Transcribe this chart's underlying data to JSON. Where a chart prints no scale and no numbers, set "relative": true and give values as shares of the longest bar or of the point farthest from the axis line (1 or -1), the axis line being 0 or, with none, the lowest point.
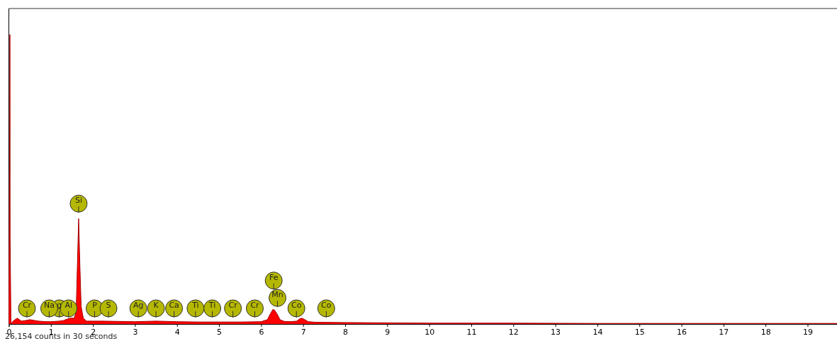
{
  "chart_data": {
    "type": "area",
    "relative": true,
    "xlim": [
      0,
      19.7
    ],
    "xticks": [
      0,
      1,
      2,
      3,
      4,
      5,
      6,
      7,
      8,
      9,
      10,
      11,
      12,
      13,
      14,
      15,
      16,
      17,
      18,
      19
    ],
    "grid": false,
    "series": [
      {
        "color": "#ff0000",
        "x": [
          0,
          0.015,
          0.02,
          0.025,
          0.03,
          0.05,
          0.1,
          0.2,
          0.3,
          0.4,
          0.5,
          0.7,
          0.9,
          1.0,
          1.2,
          1.3,
          1.45,
          1.55,
          1.6,
          1.63,
          1.66,
          1.69,
          1.72,
          1.77,
          1.85,
          2.0,
          2.2,
          2.6,
          3.0,
          3.5,
          4.0,
          4.5,
          5.0,
          5.5,
          6.0,
          6.15,
          6.22,
          6.28,
          6.32,
          6.38,
          6.45,
          6.55,
          6.7,
          6.85,
          6.92,
          6.97,
          7.03,
          7.12,
          7.3,
          8.0,
          9.0,
          10.0,
          12.0,
          14.0,
          16.0,
          18.0,
          19.7
        ],
        "values": [
          0,
          0.52,
          0.52,
          1.0,
          0.3,
          0.0,
          0.01,
          0.02,
          0.01,
          0.012,
          0.015,
          0.01,
          0.008,
          0.008,
          0.01,
          0.012,
          0.02,
          0.02,
          0.04,
          0.2,
          0.364,
          0.2,
          0.06,
          0.02,
          0.01,
          0.01,
          0.01,
          0.009,
          0.008,
          0.01,
          0.008,
          0.007,
          0.007,
          0.007,
          0.008,
          0.015,
          0.035,
          0.05,
          0.048,
          0.035,
          0.015,
          0.009,
          0.008,
          0.01,
          0.018,
          0.02,
          0.016,
          0.008,
          0.006,
          0.005,
          0.004,
          0.003,
          0.003,
          0.002,
          0.002,
          0.002,
          0.002
        ]
      }
    ],
    "annotations": [
      {
        "text": "Cr",
        "x": 0.43,
        "y": 0.054
      },
      {
        "text": "g",
        "x": 1.2,
        "y": 0.054
      },
      {
        "text": "Na",
        "x": 0.96,
        "y": 0.054
      },
      {
        "text": "Al",
        "x": 1.42,
        "y": 0.054
      },
      {
        "text": "P",
        "x": 2.04,
        "y": 0.054
      },
      {
        "text": "S",
        "x": 2.37,
        "y": 0.054
      },
      {
        "text": "Ag",
        "x": 3.08,
        "y": 0.054
      },
      {
        "text": "K",
        "x": 3.5,
        "y": 0.054
      },
      {
        "text": "Ca",
        "x": 3.93,
        "y": 0.054
      },
      {
        "text": "Ti",
        "x": 4.44,
        "y": 0.054
      },
      {
        "text": "Ti",
        "x": 4.84,
        "y": 0.054
      },
      {
        "text": "Cr",
        "x": 5.33,
        "y": 0.054
      },
      {
        "text": "Cr",
        "x": 5.85,
        "y": 0.054
      },
      {
        "text": "Fe",
        "x": 6.3,
        "y": 0.15
      },
      {
        "text": "Mn",
        "x": 6.39,
        "y": 0.09
      },
      {
        "text": "Co",
        "x": 6.84,
        "y": 0.054
      },
      {
        "text": "Co",
        "x": 7.55,
        "y": 0.054
      },
      {
        "text": "Si",
        "x": 1.66,
        "y": 0.416
      },
      "26,154 counts in 30 seconds"
    ]
  }
}
